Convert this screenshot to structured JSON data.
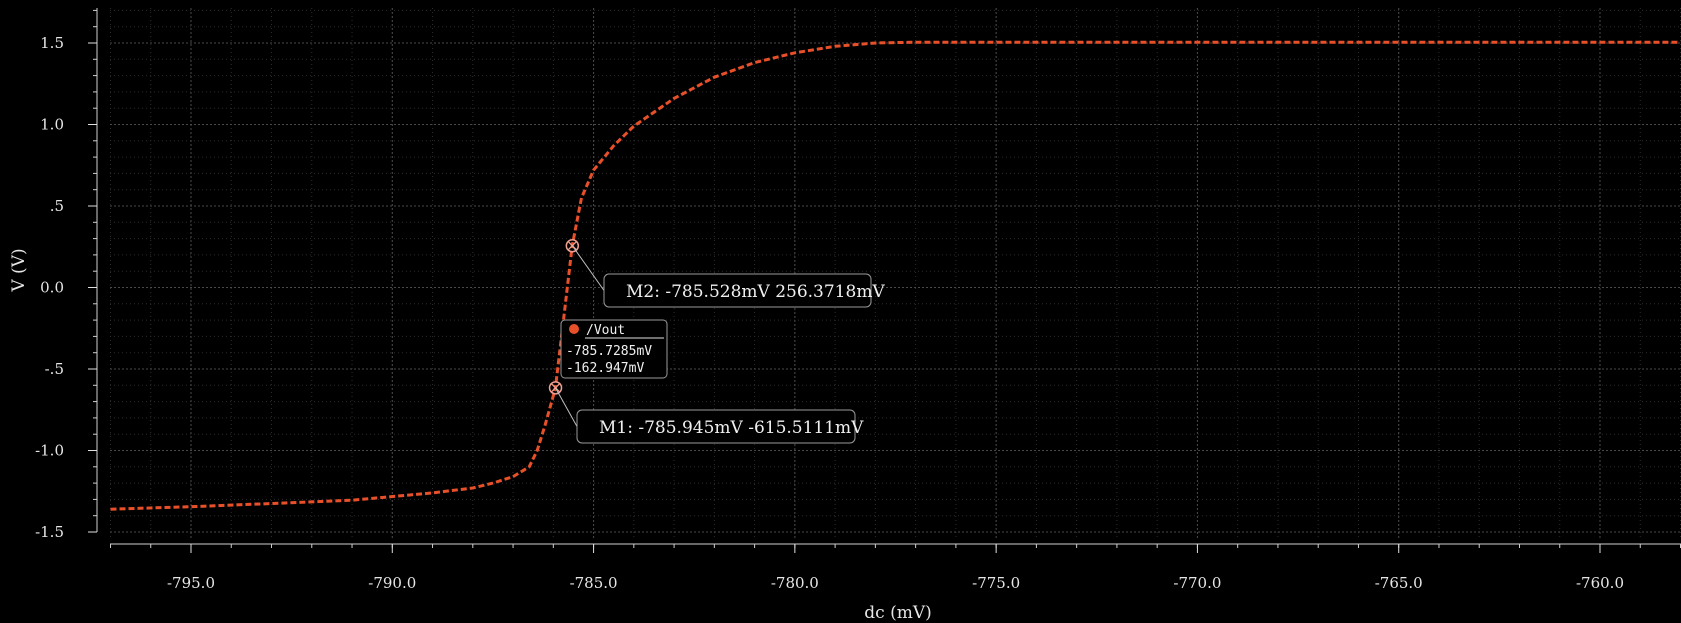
{
  "chart_data": {
    "type": "line",
    "xlabel": "dc (mV)",
    "ylabel": "V (V)",
    "xlim": [
      -797.0,
      -758.0
    ],
    "ylim": [
      -1.5,
      1.7
    ],
    "x_ticks": [
      -795.0,
      -790.0,
      -785.0,
      -780.0,
      -775.0,
      -770.0,
      -765.0,
      -760.0
    ],
    "x_tick_labels": [
      "-795.0",
      "-790.0",
      "-785.0",
      "-780.0",
      "-775.0",
      "-770.0",
      "-765.0",
      "-760.0"
    ],
    "y_ticks": [
      1.5,
      1.0,
      0.5,
      0.0,
      -0.5,
      -1.0,
      -1.5
    ],
    "y_tick_labels": [
      "1.5",
      "1.0",
      ".5",
      "0.0",
      "-.5",
      "-1.0",
      "-1.5"
    ],
    "grid": true,
    "series": [
      {
        "name": "/Vout",
        "color": "#e8502a",
        "points": [
          [
            -797.0,
            -1.36
          ],
          [
            -795.0,
            -1.345
          ],
          [
            -793.0,
            -1.325
          ],
          [
            -791.0,
            -1.305
          ],
          [
            -789.0,
            -1.26
          ],
          [
            -788.0,
            -1.23
          ],
          [
            -787.5,
            -1.2
          ],
          [
            -787.0,
            -1.16
          ],
          [
            -786.6,
            -1.1
          ],
          [
            -786.4,
            -1.0
          ],
          [
            -786.2,
            -0.84
          ],
          [
            -785.95,
            -0.62
          ],
          [
            -785.73,
            -0.163
          ],
          [
            -785.53,
            0.256
          ],
          [
            -785.3,
            0.55
          ],
          [
            -785.0,
            0.72
          ],
          [
            -784.5,
            0.87
          ],
          [
            -784.0,
            0.99
          ],
          [
            -783.0,
            1.16
          ],
          [
            -782.0,
            1.29
          ],
          [
            -781.0,
            1.38
          ],
          [
            -780.0,
            1.44
          ],
          [
            -779.0,
            1.48
          ],
          [
            -778.0,
            1.5
          ],
          [
            -777.0,
            1.505
          ],
          [
            -775.0,
            1.505
          ],
          [
            -770.0,
            1.505
          ],
          [
            -765.0,
            1.505
          ],
          [
            -758.0,
            1.505
          ]
        ]
      }
    ],
    "markers": [
      {
        "id": "M2",
        "x": -785.528,
        "y": 0.2563718,
        "label": "M2: -785.528mV 256.3718mV"
      },
      {
        "id": "M1",
        "x": -785.945,
        "y": -0.6155111,
        "label": "M1: -785.945mV -615.5111mV"
      }
    ],
    "tooltip": {
      "series": "/Vout",
      "x": -785.7285,
      "y": -0.162947,
      "x_text": "-785.7285mV",
      "y_text": "-162.947mV"
    }
  }
}
